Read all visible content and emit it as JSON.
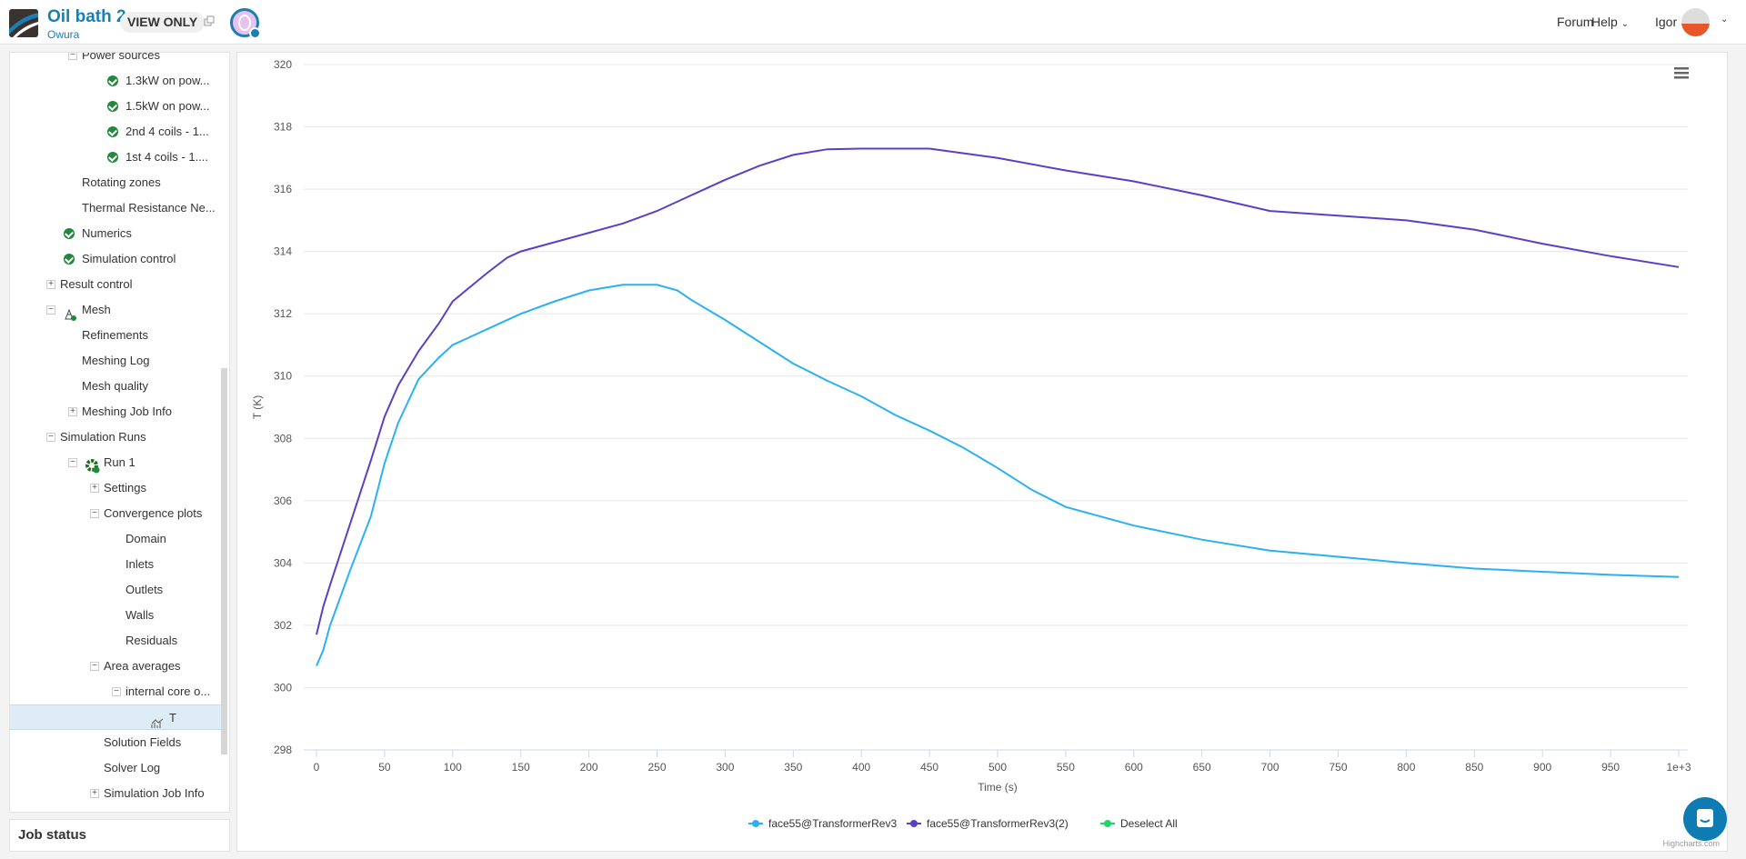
{
  "header": {
    "project_title": "Oil bath 2",
    "owner": "Owura",
    "view_only": "VIEW ONLY",
    "nav": {
      "forum": "Forum",
      "help": "Help",
      "user": "Igor"
    }
  },
  "tree": [
    {
      "label": "Power sources",
      "depth": 1,
      "toggle": "minus"
    },
    {
      "label": "1.3kW on pow...",
      "depth": 2,
      "icon": "check"
    },
    {
      "label": "1.5kW on pow...",
      "depth": 2,
      "icon": "check"
    },
    {
      "label": "2nd 4 coils - 1...",
      "depth": 2,
      "icon": "check"
    },
    {
      "label": "1st 4 coils - 1....",
      "depth": 2,
      "icon": "check"
    },
    {
      "label": "Rotating zones",
      "depth": 1
    },
    {
      "label": "Thermal Resistance Ne...",
      "depth": 1
    },
    {
      "label": "Numerics",
      "depth": 0,
      "icon": "check"
    },
    {
      "label": "Simulation control",
      "depth": 0,
      "icon": "check"
    },
    {
      "label": "Result control",
      "depth": 0,
      "toggle": "plus"
    },
    {
      "label": "Mesh",
      "depth": 0,
      "toggle": "minus",
      "icon": "mesh"
    },
    {
      "label": "Refinements",
      "depth": 1
    },
    {
      "label": "Meshing Log",
      "depth": 1
    },
    {
      "label": "Mesh quality",
      "depth": 1
    },
    {
      "label": "Meshing Job Info",
      "depth": 1,
      "toggle": "plus"
    },
    {
      "label": "Simulation Runs",
      "depth": 0,
      "toggle": "minus"
    },
    {
      "label": "Run 1",
      "depth": 1,
      "toggle": "minus",
      "icon": "gear"
    },
    {
      "label": "Settings",
      "depth": 2,
      "toggle": "plus"
    },
    {
      "label": "Convergence plots",
      "depth": 2,
      "toggle": "minus"
    },
    {
      "label": "Domain",
      "depth": 3
    },
    {
      "label": "Inlets",
      "depth": 3
    },
    {
      "label": "Outlets",
      "depth": 3
    },
    {
      "label": "Walls",
      "depth": 3
    },
    {
      "label": "Residuals",
      "depth": 3
    },
    {
      "label": "Area averages",
      "depth": 2,
      "toggle": "minus"
    },
    {
      "label": "internal core o...",
      "depth": 3,
      "toggle": "minus"
    },
    {
      "label": "T",
      "depth": 4,
      "icon": "chart",
      "selected": true
    },
    {
      "label": "Solution Fields",
      "depth": 2
    },
    {
      "label": "Solver Log",
      "depth": 2
    },
    {
      "label": "Simulation Job Info",
      "depth": 2,
      "toggle": "plus"
    }
  ],
  "job_status": "Job status",
  "chart_data": {
    "type": "line",
    "xlabel": "Time (s)",
    "ylabel": "T (K)",
    "xlim": [
      0,
      1000
    ],
    "ylim": [
      298,
      320
    ],
    "xticks": [
      0,
      50,
      100,
      150,
      200,
      250,
      300,
      350,
      400,
      450,
      500,
      550,
      600,
      650,
      700,
      750,
      800,
      850,
      900,
      950,
      1000
    ],
    "xtick_labels": [
      "0",
      "50",
      "100",
      "150",
      "200",
      "250",
      "300",
      "350",
      "400",
      "450",
      "500",
      "550",
      "600",
      "650",
      "700",
      "750",
      "800",
      "850",
      "900",
      "950",
      "1e+3"
    ],
    "yticks": [
      298,
      300,
      302,
      304,
      306,
      308,
      310,
      312,
      314,
      316,
      318,
      320
    ],
    "grid": true,
    "legend": "bottom",
    "credits": "Highcharts.com",
    "deselect_label": "Deselect All",
    "series": [
      {
        "name": "face55@TransformerRev3",
        "color": "#2ab0f5",
        "x": [
          0,
          5,
          10,
          25,
          40,
          50,
          60,
          75,
          90,
          100,
          125,
          150,
          175,
          200,
          225,
          250,
          265,
          275,
          300,
          325,
          350,
          375,
          400,
          425,
          450,
          475,
          500,
          525,
          550,
          600,
          650,
          700,
          750,
          800,
          850,
          900,
          950,
          1000
        ],
        "y": [
          300.7,
          301.2,
          302.0,
          303.8,
          305.5,
          307.2,
          308.5,
          309.9,
          310.6,
          311.0,
          311.5,
          312.0,
          312.4,
          312.75,
          312.93,
          312.93,
          312.75,
          312.45,
          311.8,
          311.1,
          310.4,
          309.85,
          309.35,
          308.75,
          308.25,
          307.7,
          307.05,
          306.35,
          305.8,
          305.2,
          304.75,
          304.4,
          304.2,
          304.0,
          303.82,
          303.72,
          303.62,
          303.55
        ]
      },
      {
        "name": "face55@TransformerRev3(2)",
        "color": "#5b3fc7",
        "x": [
          0,
          5,
          10,
          25,
          40,
          50,
          60,
          75,
          90,
          100,
          125,
          140,
          150,
          175,
          200,
          225,
          250,
          275,
          300,
          325,
          350,
          375,
          400,
          450,
          500,
          550,
          600,
          650,
          700,
          750,
          800,
          850,
          900,
          950,
          1000
        ],
        "y": [
          301.7,
          302.6,
          303.3,
          305.3,
          307.3,
          308.7,
          309.7,
          310.8,
          311.7,
          312.4,
          313.3,
          313.8,
          314.0,
          314.3,
          314.6,
          314.9,
          315.3,
          315.8,
          316.3,
          316.75,
          317.1,
          317.28,
          317.3,
          317.3,
          317.0,
          316.6,
          316.25,
          315.8,
          315.3,
          315.15,
          315.0,
          314.7,
          314.25,
          313.85,
          313.5
        ]
      }
    ]
  }
}
